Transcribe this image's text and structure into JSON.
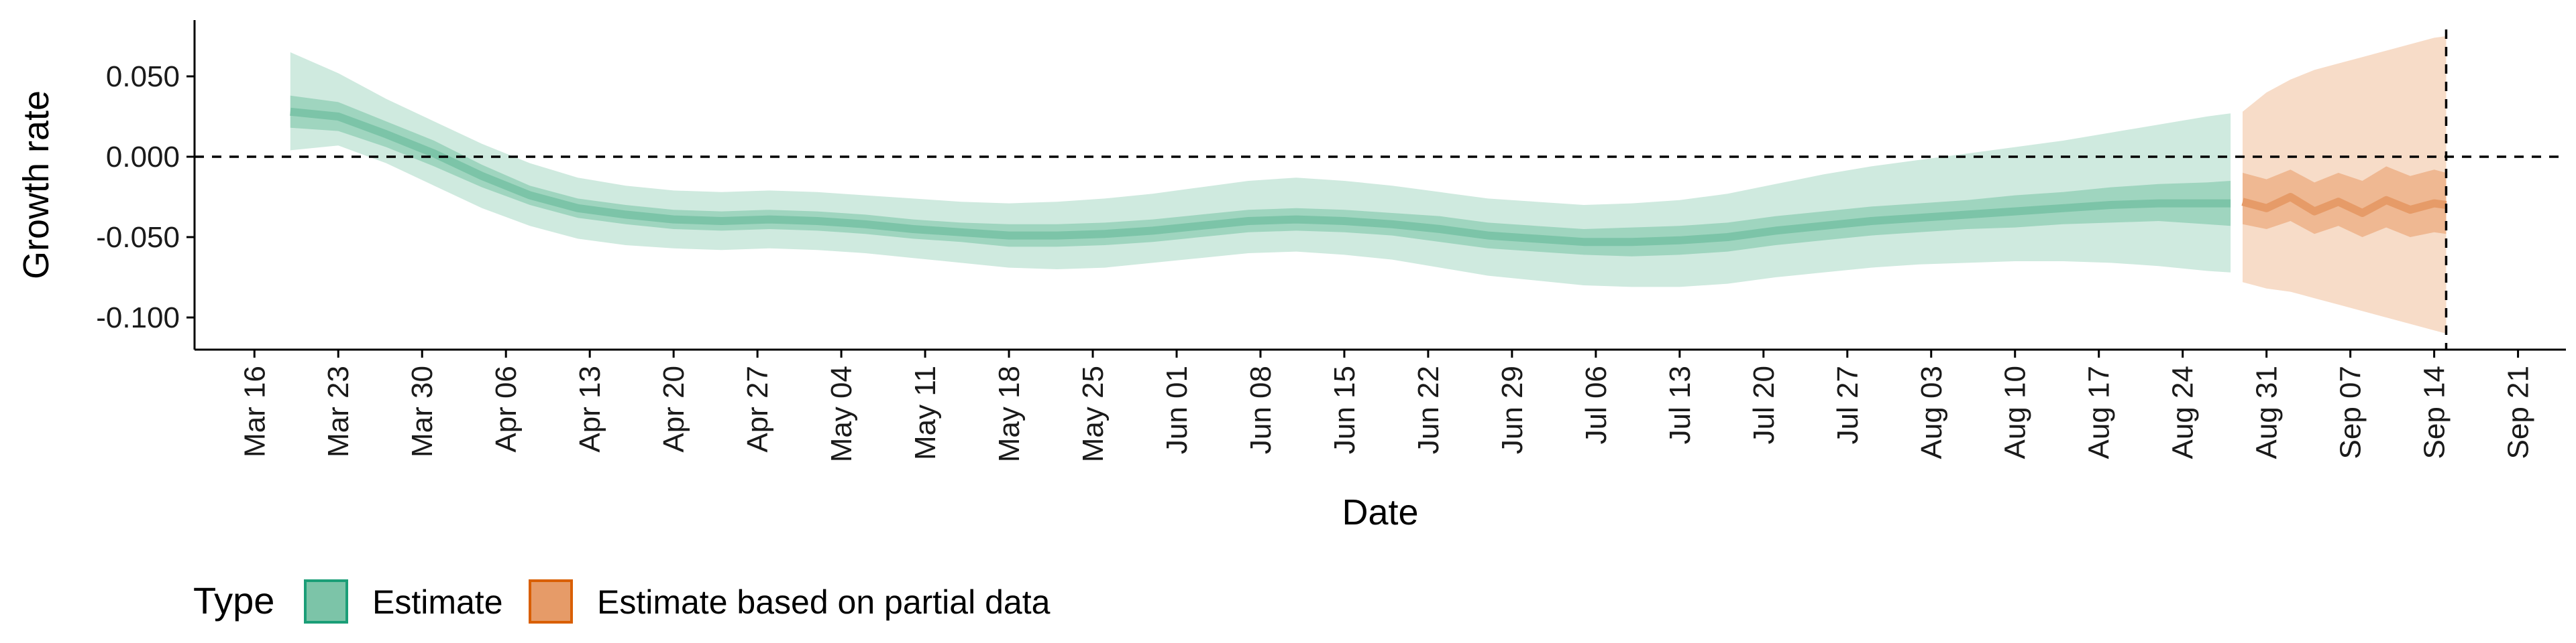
{
  "chart_data": {
    "type": "area",
    "title": "",
    "xlabel": "Date",
    "ylabel": "Growth rate",
    "ylim": [
      -0.12,
      0.085
    ],
    "y_ticks": [
      {
        "value": 0.05,
        "label": "0.050"
      },
      {
        "value": 0.0,
        "label": "0.000"
      },
      {
        "value": -0.05,
        "label": "-0.050"
      },
      {
        "value": -0.1,
        "label": "-0.100"
      }
    ],
    "x_range": [
      "2020-03-11",
      "2020-09-25"
    ],
    "x_ticks": [
      "Mar 16",
      "Mar 23",
      "Mar 30",
      "Apr 06",
      "Apr 13",
      "Apr 20",
      "Apr 27",
      "May 04",
      "May 11",
      "May 18",
      "May 25",
      "Jun 01",
      "Jun 08",
      "Jun 15",
      "Jun 22",
      "Jun 29",
      "Jul 06",
      "Jul 13",
      "Jul 20",
      "Jul 27",
      "Aug 03",
      "Aug 10",
      "Aug 17",
      "Aug 24",
      "Aug 31",
      "Sep 07",
      "Sep 14",
      "Sep 21"
    ],
    "x_tick_dates": [
      "2020-03-16",
      "2020-03-23",
      "2020-03-30",
      "2020-04-06",
      "2020-04-13",
      "2020-04-20",
      "2020-04-27",
      "2020-05-04",
      "2020-05-11",
      "2020-05-18",
      "2020-05-25",
      "2020-06-01",
      "2020-06-08",
      "2020-06-15",
      "2020-06-22",
      "2020-06-29",
      "2020-07-06",
      "2020-07-13",
      "2020-07-20",
      "2020-07-27",
      "2020-08-03",
      "2020-08-10",
      "2020-08-17",
      "2020-08-24",
      "2020-08-31",
      "2020-09-07",
      "2020-09-14",
      "2020-09-21"
    ],
    "hline": 0,
    "vline_date": "2020-09-15",
    "legend": {
      "title": "Type",
      "placement": "bottom-left",
      "entries": [
        {
          "label": "Estimate",
          "color": "#7cc4a8",
          "border": "#1b9e77"
        },
        {
          "label": "Estimate based on partial data",
          "color": "#e69b68",
          "border": "#d95f02"
        }
      ]
    },
    "series": [
      {
        "name": "Estimate",
        "color_outer": "#cfeadf",
        "color_inner": "#9fd5bf",
        "color_median": "#7cc4a8",
        "x": [
          "2020-03-19",
          "2020-03-23",
          "2020-03-27",
          "2020-03-31",
          "2020-04-04",
          "2020-04-08",
          "2020-04-12",
          "2020-04-16",
          "2020-04-20",
          "2020-04-24",
          "2020-04-28",
          "2020-05-02",
          "2020-05-06",
          "2020-05-10",
          "2020-05-14",
          "2020-05-18",
          "2020-05-22",
          "2020-05-26",
          "2020-05-30",
          "2020-06-03",
          "2020-06-07",
          "2020-06-11",
          "2020-06-15",
          "2020-06-19",
          "2020-06-23",
          "2020-06-27",
          "2020-07-01",
          "2020-07-05",
          "2020-07-09",
          "2020-07-13",
          "2020-07-17",
          "2020-07-21",
          "2020-07-25",
          "2020-07-29",
          "2020-08-02",
          "2020-08-06",
          "2020-08-10",
          "2020-08-14",
          "2020-08-18",
          "2020-08-22",
          "2020-08-26",
          "2020-08-28"
        ],
        "median": [
          0.028,
          0.025,
          0.014,
          0.002,
          -0.012,
          -0.024,
          -0.032,
          -0.036,
          -0.039,
          -0.04,
          -0.039,
          -0.04,
          -0.042,
          -0.045,
          -0.047,
          -0.049,
          -0.049,
          -0.048,
          -0.046,
          -0.043,
          -0.04,
          -0.039,
          -0.04,
          -0.042,
          -0.045,
          -0.049,
          -0.051,
          -0.053,
          -0.053,
          -0.052,
          -0.05,
          -0.046,
          -0.043,
          -0.04,
          -0.038,
          -0.036,
          -0.034,
          -0.032,
          -0.03,
          -0.029,
          -0.029,
          -0.029
        ],
        "inner_low": [
          0.018,
          0.016,
          0.006,
          -0.006,
          -0.019,
          -0.03,
          -0.038,
          -0.042,
          -0.045,
          -0.046,
          -0.045,
          -0.046,
          -0.048,
          -0.051,
          -0.053,
          -0.056,
          -0.056,
          -0.055,
          -0.053,
          -0.05,
          -0.047,
          -0.046,
          -0.047,
          -0.049,
          -0.053,
          -0.057,
          -0.059,
          -0.061,
          -0.062,
          -0.061,
          -0.059,
          -0.055,
          -0.052,
          -0.049,
          -0.047,
          -0.045,
          -0.044,
          -0.042,
          -0.041,
          -0.04,
          -0.042,
          -0.043
        ],
        "inner_high": [
          0.038,
          0.034,
          0.022,
          0.01,
          -0.005,
          -0.018,
          -0.026,
          -0.03,
          -0.033,
          -0.034,
          -0.033,
          -0.034,
          -0.036,
          -0.039,
          -0.041,
          -0.042,
          -0.042,
          -0.041,
          -0.039,
          -0.036,
          -0.033,
          -0.032,
          -0.033,
          -0.035,
          -0.037,
          -0.041,
          -0.043,
          -0.045,
          -0.044,
          -0.043,
          -0.041,
          -0.037,
          -0.034,
          -0.031,
          -0.029,
          -0.027,
          -0.024,
          -0.022,
          -0.019,
          -0.017,
          -0.016,
          -0.015
        ],
        "outer_low": [
          0.004,
          0.007,
          -0.004,
          -0.018,
          -0.032,
          -0.043,
          -0.051,
          -0.055,
          -0.057,
          -0.058,
          -0.057,
          -0.058,
          -0.06,
          -0.063,
          -0.066,
          -0.069,
          -0.07,
          -0.069,
          -0.066,
          -0.063,
          -0.06,
          -0.059,
          -0.061,
          -0.064,
          -0.069,
          -0.074,
          -0.077,
          -0.08,
          -0.081,
          -0.081,
          -0.079,
          -0.075,
          -0.072,
          -0.069,
          -0.067,
          -0.066,
          -0.065,
          -0.065,
          -0.066,
          -0.068,
          -0.071,
          -0.072
        ],
        "outer_high": [
          0.065,
          0.052,
          0.036,
          0.022,
          0.008,
          -0.004,
          -0.013,
          -0.018,
          -0.021,
          -0.022,
          -0.021,
          -0.022,
          -0.024,
          -0.026,
          -0.028,
          -0.029,
          -0.028,
          -0.026,
          -0.023,
          -0.019,
          -0.015,
          -0.013,
          -0.015,
          -0.018,
          -0.022,
          -0.026,
          -0.028,
          -0.03,
          -0.029,
          -0.027,
          -0.023,
          -0.017,
          -0.011,
          -0.006,
          -0.002,
          0.002,
          0.006,
          0.01,
          0.015,
          0.02,
          0.025,
          0.027
        ]
      },
      {
        "name": "Estimate based on partial data",
        "color_outer": "#f7dcc8",
        "color_inner": "#efb892",
        "color_median": "#e69b68",
        "x": [
          "2020-08-29",
          "2020-08-31",
          "2020-09-02",
          "2020-09-04",
          "2020-09-06",
          "2020-09-08",
          "2020-09-10",
          "2020-09-12",
          "2020-09-14",
          "2020-09-15"
        ],
        "median": [
          -0.028,
          -0.032,
          -0.025,
          -0.034,
          -0.028,
          -0.035,
          -0.027,
          -0.033,
          -0.029,
          -0.03
        ],
        "inner_low": [
          -0.042,
          -0.045,
          -0.04,
          -0.048,
          -0.043,
          -0.05,
          -0.044,
          -0.05,
          -0.047,
          -0.048
        ],
        "inner_high": [
          -0.01,
          -0.014,
          -0.008,
          -0.016,
          -0.01,
          -0.015,
          -0.006,
          -0.012,
          -0.008,
          -0.01
        ],
        "outer_low": [
          -0.078,
          -0.082,
          -0.084,
          -0.088,
          -0.092,
          -0.096,
          -0.1,
          -0.104,
          -0.108,
          -0.11
        ],
        "outer_high": [
          0.028,
          0.04,
          0.048,
          0.054,
          0.058,
          0.062,
          0.066,
          0.07,
          0.074,
          0.075
        ]
      }
    ]
  }
}
